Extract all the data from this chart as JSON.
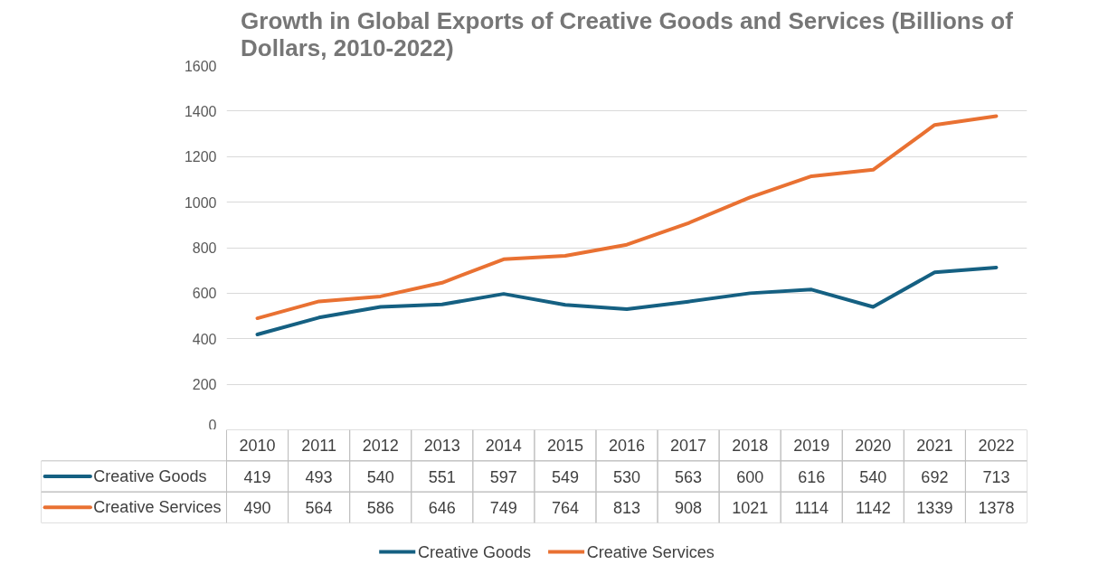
{
  "chart_data": {
    "type": "line",
    "title": "Growth in Global Exports of Creative Goods and Services (Billions of Dollars, 2010-2022)",
    "categories": [
      "2010",
      "2011",
      "2012",
      "2013",
      "2014",
      "2015",
      "2016",
      "2017",
      "2018",
      "2019",
      "2020",
      "2021",
      "2022"
    ],
    "series": [
      {
        "name": "Creative Goods",
        "color": "#156082",
        "values": [
          419,
          493,
          540,
          551,
          597,
          549,
          530,
          563,
          600,
          616,
          540,
          692,
          713
        ]
      },
      {
        "name": "Creative Services",
        "color": "#e97132",
        "values": [
          490,
          564,
          586,
          646,
          749,
          764,
          813,
          908,
          1021,
          1114,
          1142,
          1339,
          1378
        ]
      }
    ],
    "ylim": [
      0,
      1600
    ],
    "yticks": [
      0,
      200,
      400,
      600,
      800,
      1000,
      1200,
      1400,
      1600
    ],
    "grid": "y",
    "legend": "bottom",
    "data_labels": true,
    "marker": "none",
    "line_style": "solid"
  }
}
